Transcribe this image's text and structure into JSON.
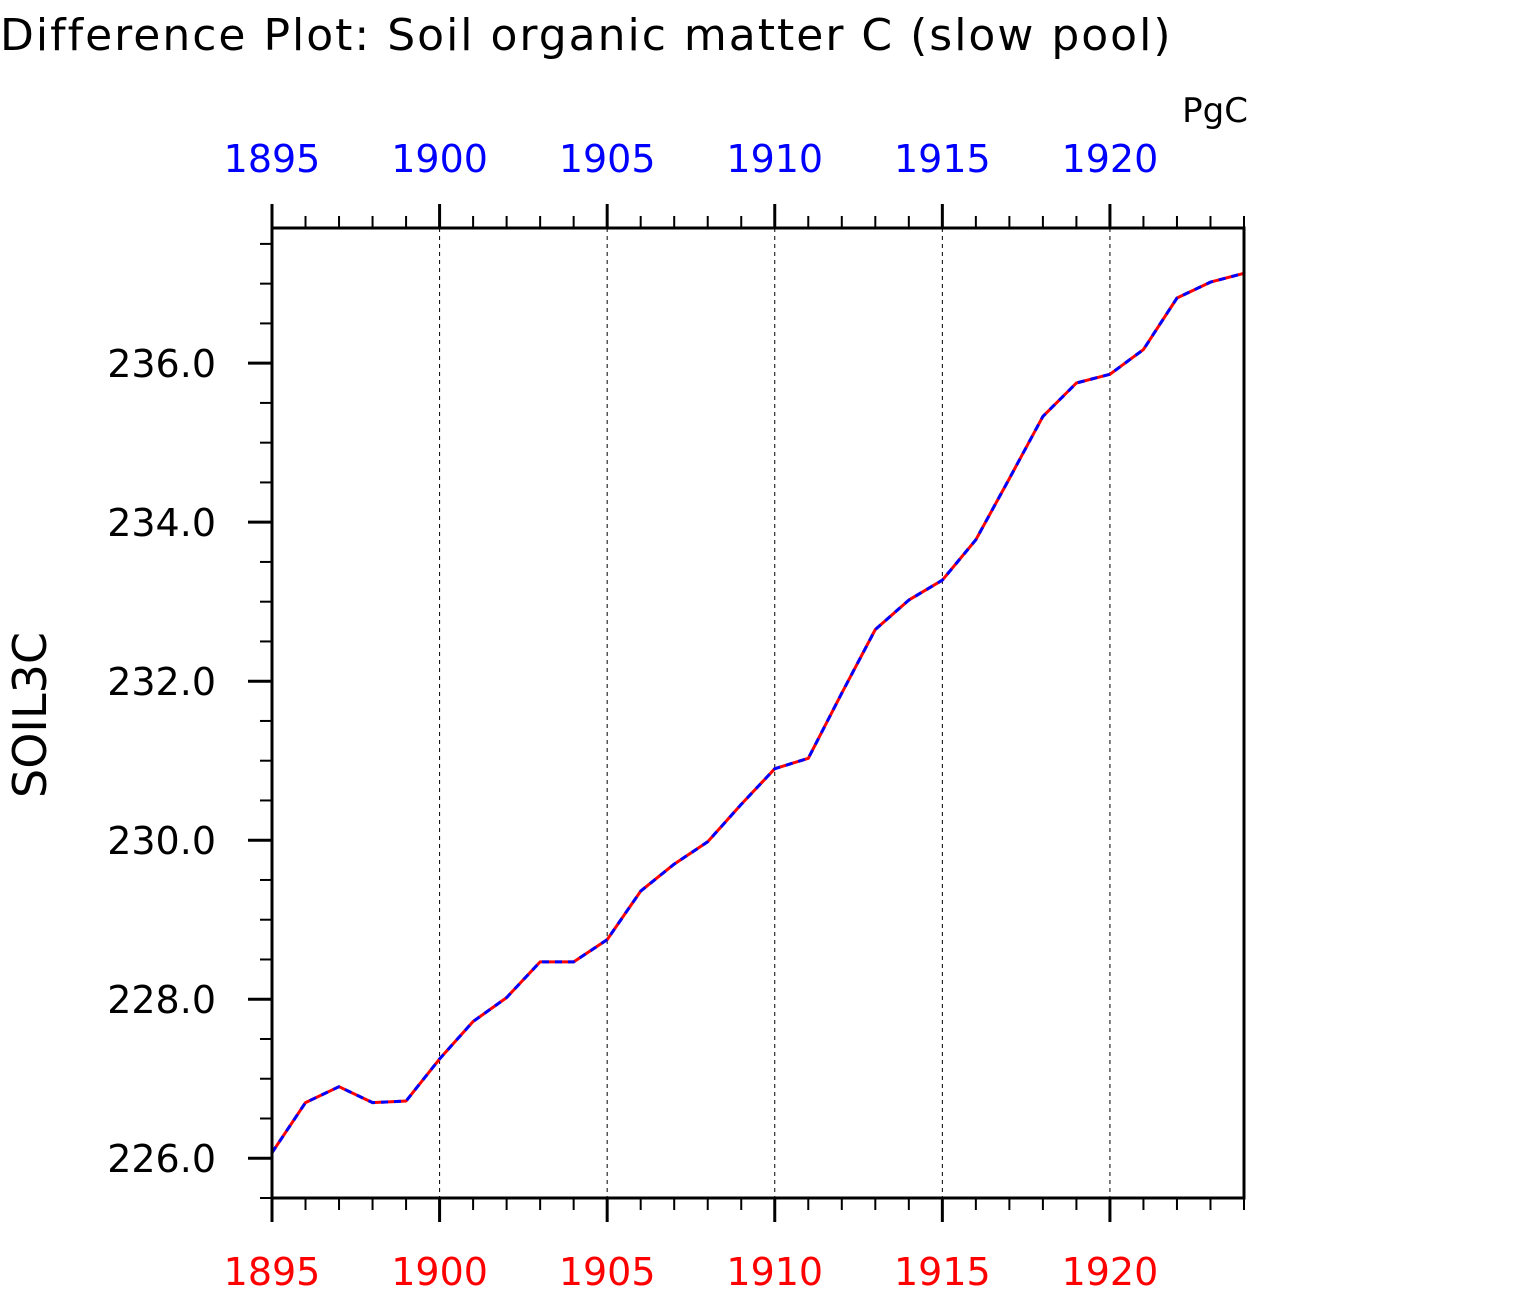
{
  "chart_data": {
    "type": "line",
    "title": "Difference Plot: Soil organic matter C (slow pool)",
    "units": "PgC",
    "ylabel": "SOIL3C",
    "xlabel": "",
    "xlim": [
      1895,
      1924
    ],
    "ylim": [
      225.5,
      237.7
    ],
    "x_ticks_major": [
      1895,
      1900,
      1905,
      1910,
      1915,
      1920
    ],
    "x_tick_labels_bottom": [
      "1895",
      "1900",
      "1905",
      "1910",
      "1915",
      "1920"
    ],
    "x_tick_labels_top": [
      "1895",
      "1900",
      "1905",
      "1910",
      "1915",
      "1920"
    ],
    "y_ticks_major": [
      226,
      228,
      230,
      232,
      234,
      236
    ],
    "y_tick_labels": [
      "226.0",
      "228.0",
      "230.0",
      "232.0",
      "234.0",
      "236.0"
    ],
    "grid": "vertical dashed lines at major x ticks",
    "colors": {
      "bottom_axis_labels": "#ff0000",
      "top_axis_labels": "#0000ff",
      "series_a": "#ff0000",
      "series_b": "#0000ff",
      "axis": "#000000"
    },
    "x": [
      1895,
      1896,
      1897,
      1898,
      1899,
      1900,
      1901,
      1902,
      1903,
      1904,
      1905,
      1906,
      1907,
      1908,
      1909,
      1910,
      1911,
      1912,
      1913,
      1914,
      1915,
      1916,
      1917,
      1918,
      1919,
      1920,
      1921,
      1922,
      1923,
      1924
    ],
    "series": [
      {
        "color": "#ff0000",
        "style": "solid",
        "values": [
          226.07,
          226.7,
          226.9,
          226.7,
          226.72,
          227.25,
          227.72,
          228.02,
          228.47,
          228.47,
          228.75,
          229.36,
          229.7,
          229.98,
          230.45,
          230.9,
          231.03,
          231.85,
          232.65,
          233.02,
          233.27,
          233.78,
          234.55,
          235.33,
          235.75,
          235.86,
          236.17,
          236.82,
          237.02,
          237.13
        ]
      },
      {
        "color": "#0000ff",
        "style": "dashed",
        "values": [
          226.07,
          226.7,
          226.9,
          226.7,
          226.72,
          227.25,
          227.72,
          228.02,
          228.47,
          228.47,
          228.75,
          229.36,
          229.7,
          229.98,
          230.45,
          230.9,
          231.03,
          231.85,
          232.65,
          233.02,
          233.27,
          233.78,
          234.55,
          235.33,
          235.75,
          235.86,
          236.17,
          236.82,
          237.02,
          237.13
        ]
      }
    ]
  }
}
